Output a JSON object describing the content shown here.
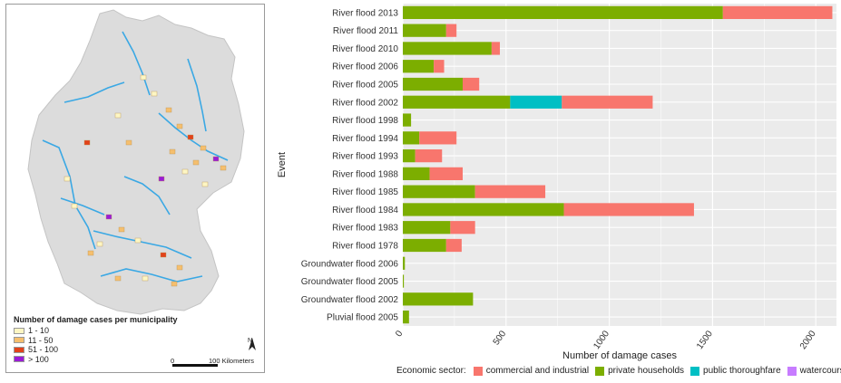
{
  "map": {
    "legend_title": "Number of damage cases per municipality",
    "legend_items": [
      {
        "label": "1 - 10",
        "color": "#fdf6c3"
      },
      {
        "label": "11 - 50",
        "color": "#f5bf6e"
      },
      {
        "label": "51 - 100",
        "color": "#e2421a"
      },
      {
        "label": "> 100",
        "color": "#9a1bd6"
      }
    ],
    "scale_zero": "0",
    "scale_label": "100 Kilometers",
    "north_label": "N",
    "colors": {
      "land": "#dcdcdc",
      "river": "#3aa8e4"
    }
  },
  "chart_data": {
    "type": "bar",
    "orientation": "horizontal",
    "stacked": true,
    "categories": [
      "River flood 2013",
      "River flood 2011",
      "River flood 2010",
      "River flood 2006",
      "River flood 2005",
      "River flood 2002",
      "River flood 1998",
      "River flood 1994",
      "River flood 1993",
      "River flood 1988",
      "River flood 1985",
      "River flood 1984",
      "River flood 1983",
      "River flood 1978",
      "Groundwater flood 2006",
      "Groundwater flood 2005",
      "Groundwater flood 2002",
      "Pluvial flood 2005"
    ],
    "series": [
      {
        "name": "private households",
        "color": "#7cae00",
        "values": [
          1550,
          210,
          430,
          150,
          290,
          520,
          40,
          80,
          60,
          130,
          350,
          780,
          230,
          210,
          10,
          5,
          340,
          30
        ]
      },
      {
        "name": "public thoroughfare",
        "color": "#00bfc4",
        "values": [
          0,
          0,
          0,
          0,
          0,
          250,
          0,
          0,
          0,
          0,
          0,
          0,
          0,
          0,
          0,
          0,
          0,
          0
        ]
      },
      {
        "name": "watercourses",
        "color": "#c77cff",
        "values": [
          0,
          0,
          0,
          0,
          0,
          0,
          0,
          0,
          0,
          0,
          0,
          0,
          0,
          0,
          0,
          0,
          0,
          0
        ]
      },
      {
        "name": "commercial and industrial",
        "color": "#f8766d",
        "values": [
          530,
          50,
          40,
          50,
          80,
          440,
          0,
          180,
          130,
          160,
          340,
          630,
          120,
          75,
          0,
          0,
          0,
          0
        ]
      }
    ],
    "segment_order_note_removed": true,
    "xlabel": "Number of damage cases",
    "ylabel": "Event",
    "xlim": [
      0,
      2100
    ],
    "xticks": [
      0,
      500,
      1000,
      1500,
      2000
    ],
    "legend_title": "Economic sector:",
    "legend_entries": [
      "commercial and industrial",
      "private households",
      "public thoroughfare",
      "watercourses"
    ],
    "legend_placement": "bottom",
    "grid": true
  }
}
